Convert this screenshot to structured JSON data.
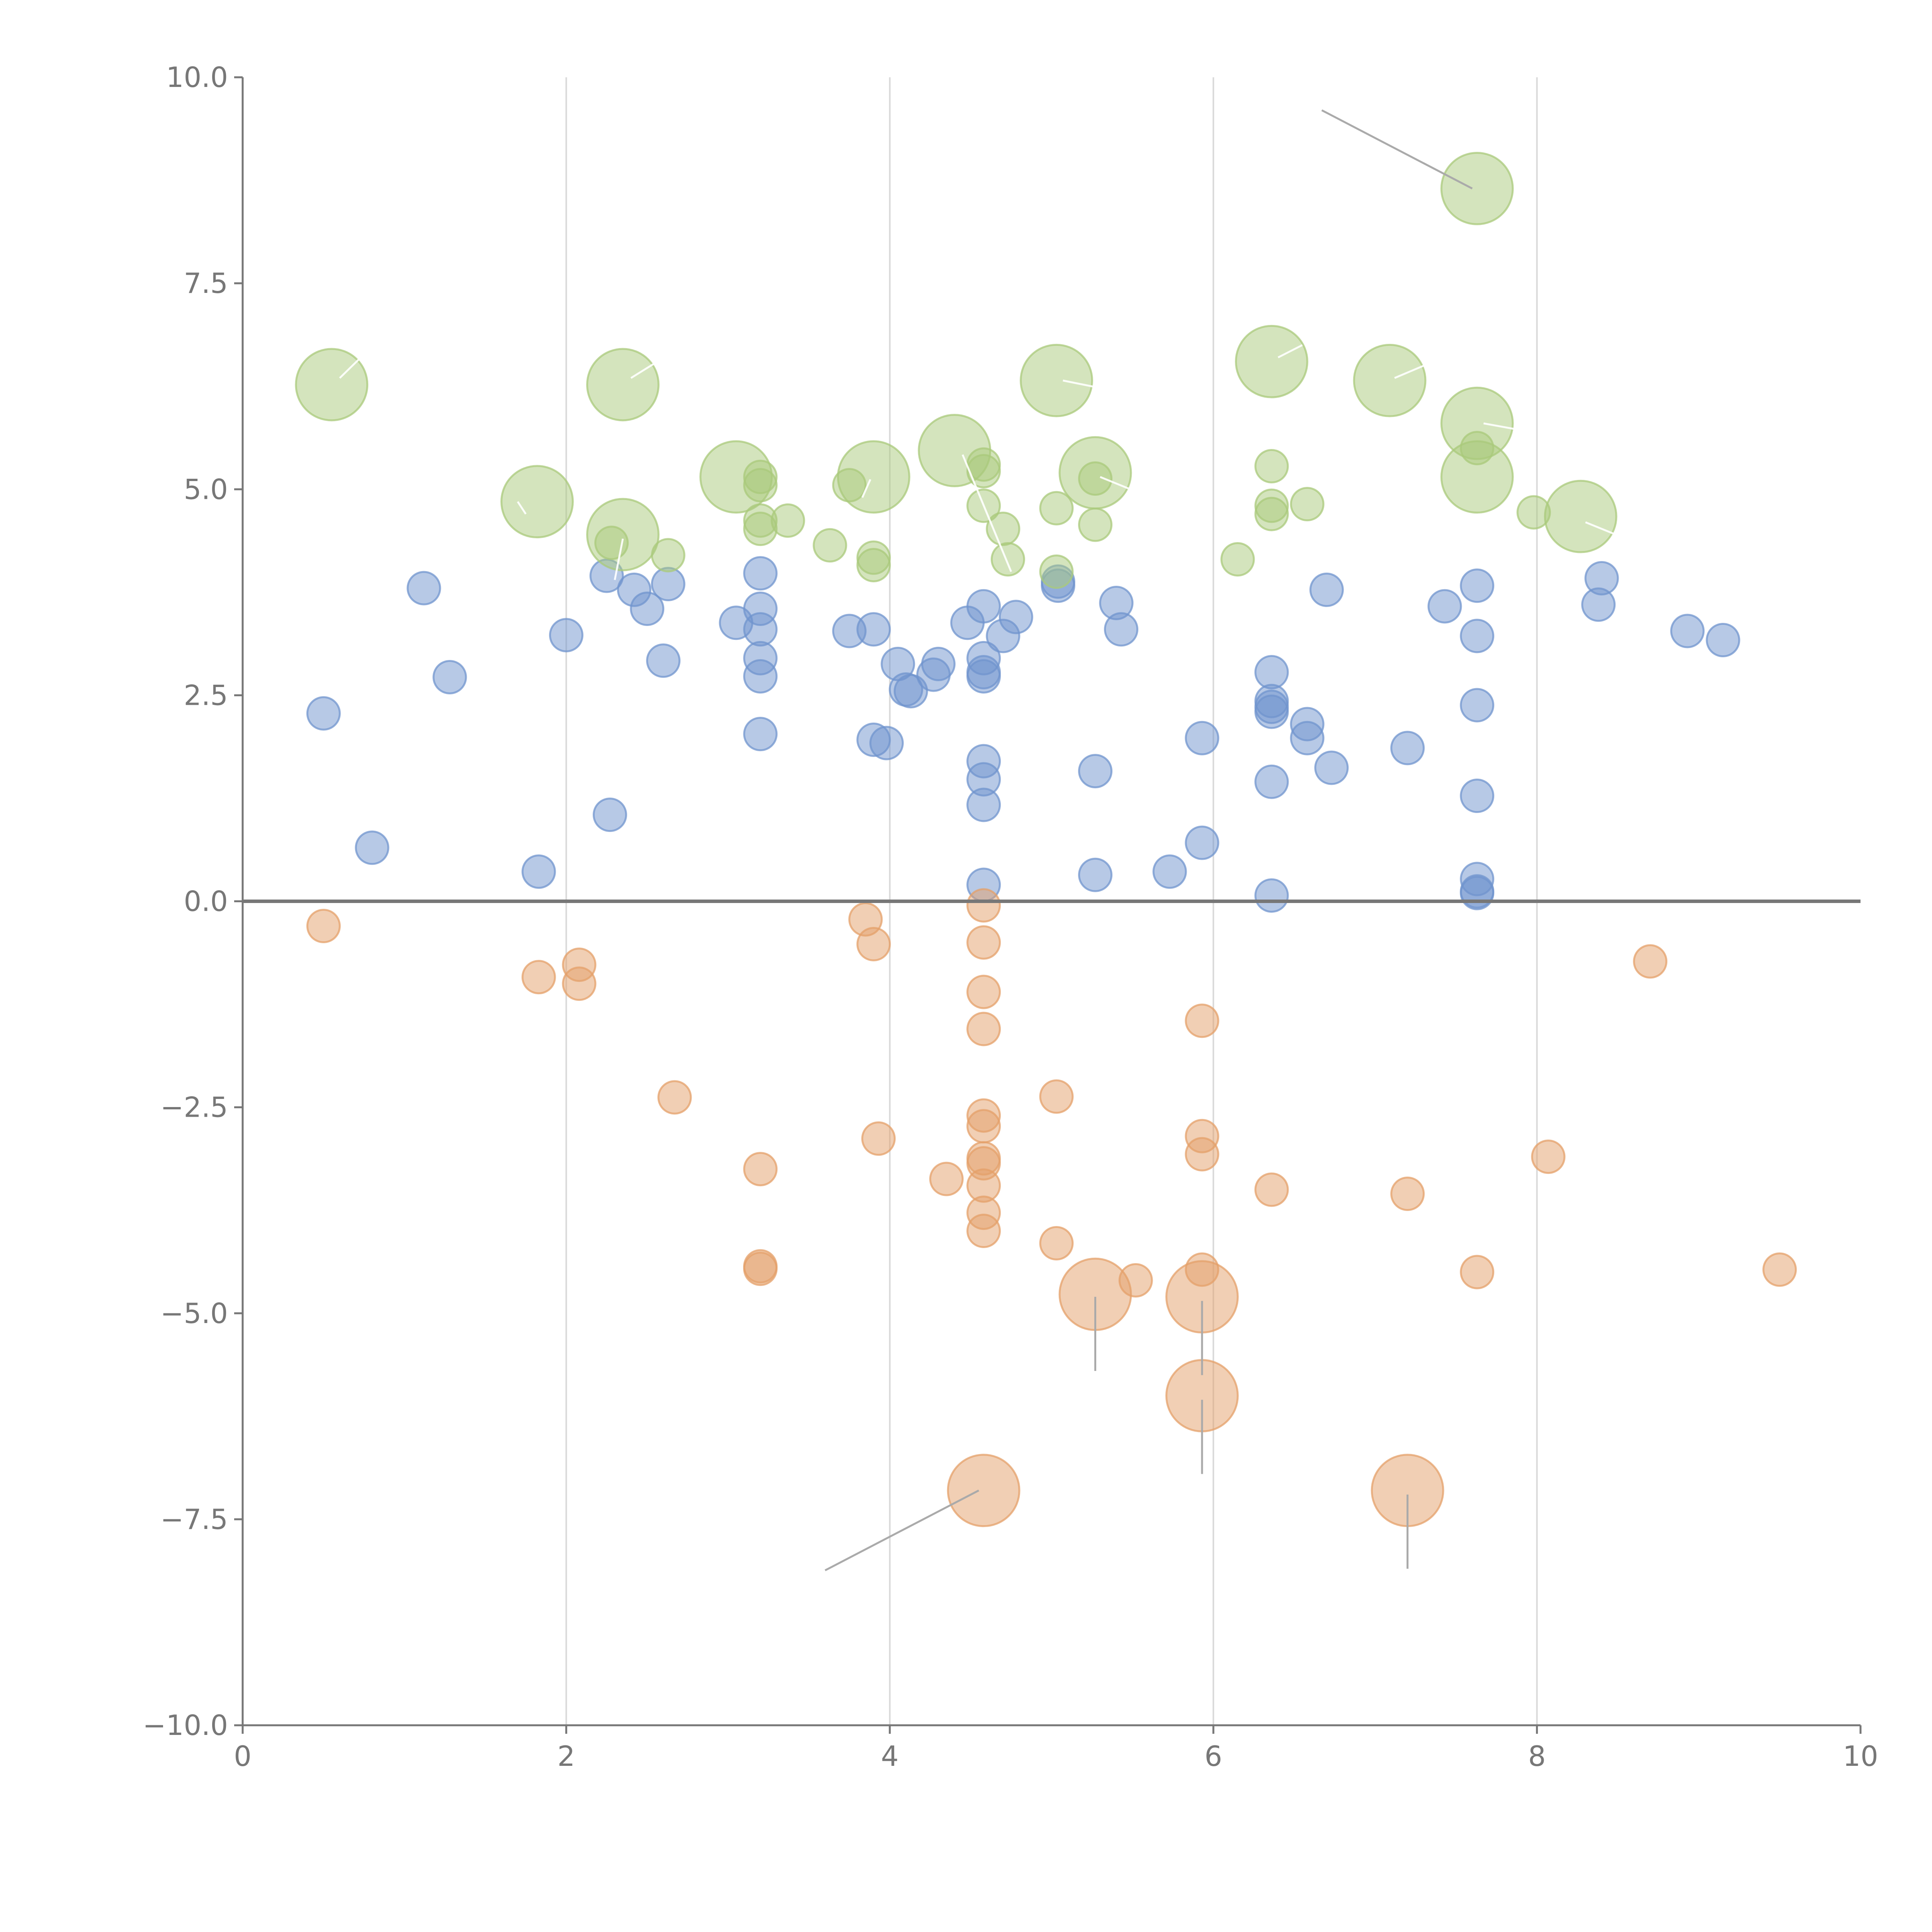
{
  "chart_data": {
    "type": "scatter",
    "title": "",
    "xlabel": "",
    "ylabel": "",
    "xlim": [
      0,
      10
    ],
    "ylim": [
      -10,
      10
    ],
    "x_ticks": [
      0,
      2,
      4,
      6,
      8,
      10
    ],
    "x_tick_labels": [
      "0",
      "2",
      "4",
      "6",
      "8",
      "10"
    ],
    "y_ticks": [
      10,
      7.5,
      5,
      2.5,
      0,
      -2.5,
      -5,
      -7.5,
      -10
    ],
    "y_tick_labels": [
      "10.0",
      "7.5",
      "5.0",
      "2.5",
      "0.0",
      "−2.5",
      "−5.0",
      "−7.5",
      "−10.0"
    ],
    "vertical_grid_at": [
      2,
      4,
      6,
      8
    ],
    "reference_line_y": 0,
    "colors": {
      "blue": "#7094cd",
      "green": "#a9c97b",
      "orange": "#e4a06a",
      "axis": "#777777",
      "grid": "#d9d9d9",
      "leader_dark": "#aaaaaa",
      "leader_light": "#ffffff"
    },
    "size_units": "relative marker radius (1 = small bubble)",
    "series": [
      {
        "name": "blue",
        "color": "#7094cd",
        "points": [
          [
            0.5,
            2.28,
            1
          ],
          [
            0.8,
            0.65,
            1
          ],
          [
            1.12,
            3.8,
            1
          ],
          [
            1.28,
            2.72,
            1
          ],
          [
            1.83,
            0.36,
            1
          ],
          [
            2.0,
            3.23,
            1
          ],
          [
            2.25,
            3.95,
            1
          ],
          [
            2.27,
            1.05,
            1
          ],
          [
            2.42,
            3.78,
            1
          ],
          [
            2.5,
            3.55,
            1
          ],
          [
            2.6,
            2.92,
            1
          ],
          [
            2.63,
            3.85,
            1
          ],
          [
            3.05,
            3.38,
            1
          ],
          [
            3.2,
            3.98,
            1
          ],
          [
            3.2,
            3.55,
            1
          ],
          [
            3.2,
            3.3,
            1
          ],
          [
            3.2,
            2.95,
            1
          ],
          [
            3.2,
            2.73,
            1
          ],
          [
            3.2,
            2.03,
            1
          ],
          [
            3.75,
            3.28,
            1
          ],
          [
            3.9,
            3.3,
            1
          ],
          [
            3.9,
            1.96,
            1
          ],
          [
            3.98,
            1.92,
            1
          ],
          [
            4.05,
            2.88,
            1
          ],
          [
            4.1,
            2.57,
            1
          ],
          [
            4.13,
            2.55,
            1
          ],
          [
            4.27,
            2.75,
            1
          ],
          [
            4.3,
            2.88,
            1
          ],
          [
            4.48,
            3.38,
            1
          ],
          [
            4.58,
            3.58,
            1
          ],
          [
            4.58,
            2.95,
            1
          ],
          [
            4.58,
            2.78,
            1
          ],
          [
            4.58,
            2.73,
            1
          ],
          [
            4.58,
            1.7,
            1
          ],
          [
            4.58,
            1.48,
            1
          ],
          [
            4.58,
            1.17,
            1
          ],
          [
            4.58,
            0.2,
            1
          ],
          [
            4.7,
            3.22,
            1
          ],
          [
            4.78,
            3.45,
            1
          ],
          [
            5.04,
            3.88,
            1
          ],
          [
            5.04,
            3.83,
            1
          ],
          [
            5.27,
            1.58,
            1
          ],
          [
            5.27,
            0.32,
            1
          ],
          [
            5.4,
            3.62,
            1
          ],
          [
            5.43,
            3.3,
            1
          ],
          [
            5.73,
            0.36,
            1
          ],
          [
            5.93,
            1.98,
            1
          ],
          [
            5.93,
            0.71,
            1
          ],
          [
            6.36,
            2.78,
            1
          ],
          [
            6.36,
            2.43,
            1
          ],
          [
            6.36,
            2.36,
            1
          ],
          [
            6.36,
            2.3,
            1
          ],
          [
            6.36,
            1.45,
            1
          ],
          [
            6.36,
            0.07,
            1
          ],
          [
            6.58,
            2.15,
            1
          ],
          [
            6.58,
            1.98,
            1
          ],
          [
            6.7,
            3.78,
            1
          ],
          [
            6.73,
            1.62,
            1
          ],
          [
            7.2,
            1.86,
            1
          ],
          [
            7.43,
            3.58,
            1
          ],
          [
            7.63,
            3.83,
            1
          ],
          [
            7.63,
            3.22,
            1
          ],
          [
            7.63,
            2.38,
            1
          ],
          [
            7.63,
            1.28,
            1
          ],
          [
            7.63,
            0.27,
            1
          ],
          [
            7.63,
            0.12,
            1
          ],
          [
            7.63,
            0.1,
            1
          ],
          [
            8.38,
            3.6,
            1
          ],
          [
            8.4,
            3.92,
            1
          ],
          [
            8.93,
            3.28,
            1
          ],
          [
            9.15,
            3.17,
            1
          ]
        ]
      },
      {
        "name": "green",
        "color": "#a9c97b",
        "points": [
          [
            0.55,
            6.27,
            2.2
          ],
          [
            1.82,
            4.85,
            2.2
          ],
          [
            2.28,
            4.35,
            1
          ],
          [
            2.35,
            6.27,
            2.2
          ],
          [
            2.35,
            4.45,
            2.2
          ],
          [
            2.63,
            4.2,
            1
          ],
          [
            3.05,
            5.15,
            2.2
          ],
          [
            3.2,
            5.15,
            1
          ],
          [
            3.2,
            5.05,
            1
          ],
          [
            3.2,
            4.62,
            1
          ],
          [
            3.2,
            4.52,
            1
          ],
          [
            3.37,
            4.62,
            1
          ],
          [
            3.63,
            4.32,
            1
          ],
          [
            3.75,
            5.05,
            1
          ],
          [
            3.9,
            5.15,
            2.2
          ],
          [
            3.9,
            4.17,
            1
          ],
          [
            3.9,
            4.08,
            1
          ],
          [
            4.4,
            5.47,
            2.2
          ],
          [
            4.58,
            5.3,
            1
          ],
          [
            4.58,
            5.22,
            1
          ],
          [
            4.58,
            4.8,
            1
          ],
          [
            4.7,
            4.52,
            1
          ],
          [
            4.73,
            4.15,
            1
          ],
          [
            5.03,
            6.32,
            2.2
          ],
          [
            5.03,
            4.77,
            1
          ],
          [
            5.03,
            4.0,
            1
          ],
          [
            5.27,
            5.2,
            2.2
          ],
          [
            5.27,
            5.13,
            1
          ],
          [
            5.27,
            4.57,
            1
          ],
          [
            6.15,
            4.15,
            1
          ],
          [
            6.36,
            6.55,
            2.2
          ],
          [
            6.36,
            5.28,
            1
          ],
          [
            6.36,
            4.8,
            1
          ],
          [
            6.36,
            4.7,
            1
          ],
          [
            6.58,
            4.82,
            1
          ],
          [
            7.09,
            6.32,
            2.2
          ],
          [
            7.63,
            8.65,
            2.2
          ],
          [
            7.63,
            5.8,
            2.2
          ],
          [
            7.63,
            5.5,
            1
          ],
          [
            7.63,
            5.15,
            2.2
          ],
          [
            7.98,
            4.72,
            1
          ],
          [
            8.27,
            4.67,
            2.2
          ]
        ]
      },
      {
        "name": "orange",
        "color": "#e4a06a",
        "points": [
          [
            0.5,
            -0.3,
            1
          ],
          [
            1.83,
            -0.92,
            1
          ],
          [
            2.08,
            -0.77,
            1
          ],
          [
            2.08,
            -1.0,
            1
          ],
          [
            2.67,
            -2.38,
            1
          ],
          [
            3.2,
            -3.25,
            1
          ],
          [
            3.2,
            -4.43,
            1
          ],
          [
            3.2,
            -4.46,
            1
          ],
          [
            3.85,
            -0.22,
            1
          ],
          [
            3.9,
            -0.52,
            1
          ],
          [
            3.93,
            -2.88,
            1
          ],
          [
            4.35,
            -3.37,
            1
          ],
          [
            4.58,
            -0.05,
            1
          ],
          [
            4.58,
            -0.5,
            1
          ],
          [
            4.58,
            -1.1,
            1
          ],
          [
            4.58,
            -1.55,
            1
          ],
          [
            4.58,
            -2.6,
            1
          ],
          [
            4.58,
            -2.73,
            1
          ],
          [
            4.58,
            -3.12,
            1
          ],
          [
            4.58,
            -3.18,
            1
          ],
          [
            4.58,
            -3.45,
            1
          ],
          [
            4.58,
            -3.78,
            1
          ],
          [
            4.58,
            -4.0,
            1
          ],
          [
            4.58,
            -7.15,
            2.2
          ],
          [
            5.03,
            -2.37,
            1
          ],
          [
            5.03,
            -4.15,
            1
          ],
          [
            5.27,
            -4.77,
            2.2
          ],
          [
            5.52,
            -4.6,
            1
          ],
          [
            5.93,
            -1.45,
            1
          ],
          [
            5.93,
            -2.85,
            1
          ],
          [
            5.93,
            -3.07,
            1
          ],
          [
            5.93,
            -4.47,
            1
          ],
          [
            5.93,
            -4.8,
            2.2
          ],
          [
            5.93,
            -6.0,
            2.2
          ],
          [
            6.36,
            -3.5,
            1
          ],
          [
            7.2,
            -3.55,
            1
          ],
          [
            7.2,
            -7.15,
            2.2
          ],
          [
            7.63,
            -4.5,
            1
          ],
          [
            8.07,
            -3.1,
            1
          ],
          [
            8.7,
            -0.73,
            1
          ],
          [
            9.5,
            -4.47,
            1
          ]
        ]
      }
    ],
    "leader_lines": [
      [
        [
          7.6,
          8.65
        ],
        [
          6.67,
          9.6
        ],
        "dark"
      ],
      [
        [
          4.55,
          -7.15
        ],
        [
          3.6,
          -8.12
        ],
        "dark"
      ],
      [
        [
          5.27,
          -4.8
        ],
        [
          5.27,
          -5.7
        ],
        "dark"
      ],
      [
        [
          5.93,
          -4.85
        ],
        [
          5.93,
          -5.75
        ],
        "dark"
      ],
      [
        [
          5.93,
          -6.05
        ],
        [
          5.93,
          -6.95
        ],
        "dark"
      ],
      [
        [
          7.2,
          -7.2
        ],
        [
          7.2,
          -8.1
        ],
        "dark"
      ],
      [
        [
          0.6,
          6.35
        ],
        [
          0.72,
          6.58
        ],
        "light"
      ],
      [
        [
          1.75,
          4.7
        ],
        [
          1.7,
          4.85
        ],
        "light"
      ],
      [
        [
          2.4,
          6.35
        ],
        [
          2.58,
          6.57
        ],
        "light"
      ],
      [
        [
          2.35,
          4.4
        ],
        [
          2.3,
          3.9
        ],
        "light"
      ],
      [
        [
          3.88,
          5.12
        ],
        [
          3.83,
          4.9
        ],
        "light"
      ],
      [
        [
          4.45,
          5.42
        ],
        [
          4.75,
          4.0
        ],
        "light"
      ],
      [
        [
          5.07,
          6.32
        ],
        [
          5.55,
          6.13
        ],
        "light"
      ],
      [
        [
          5.3,
          5.15
        ],
        [
          5.55,
          4.95
        ],
        "light"
      ],
      [
        [
          6.4,
          6.6
        ],
        [
          6.55,
          6.75
        ],
        "light"
      ],
      [
        [
          7.12,
          6.35
        ],
        [
          7.3,
          6.5
        ],
        "light"
      ],
      [
        [
          7.67,
          5.8
        ],
        [
          7.95,
          5.7
        ],
        "light"
      ],
      [
        [
          8.3,
          4.6
        ],
        [
          8.55,
          4.4
        ],
        "light"
      ]
    ]
  }
}
